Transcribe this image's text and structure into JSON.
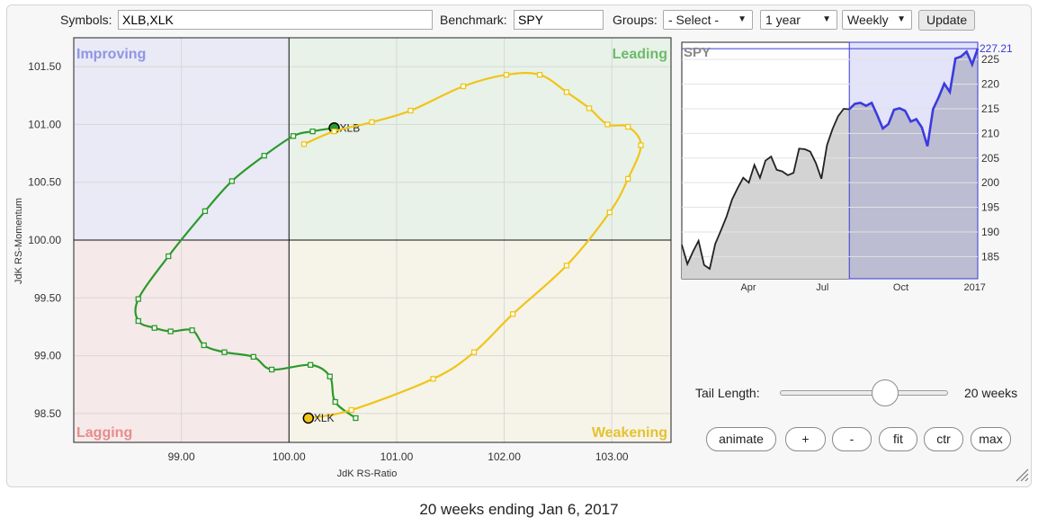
{
  "toolbar": {
    "symbols_label": "Symbols:",
    "symbols_value": "XLB,XLK",
    "benchmark_label": "Benchmark:",
    "benchmark_value": "SPY",
    "groups_label": "Groups:",
    "groups_value": "- Select -",
    "period_value": "1 year",
    "frequency_value": "Weekly",
    "update_label": "Update"
  },
  "rrg": {
    "quadrants": {
      "improving": "Improving",
      "leading": "Leading",
      "lagging": "Lagging",
      "weakening": "Weakening"
    },
    "colors": {
      "improving": "#e9eaf5",
      "leading": "#e8f2e8",
      "lagging": "#f6e9e9",
      "weakening": "#f6f4e8",
      "improving_text": "#8f95e3",
      "leading_text": "#6cbb6c",
      "lagging_text": "#e88c8c",
      "weakening_text": "#e5c230"
    }
  },
  "chart_data": [
    {
      "type": "scatter",
      "title": "",
      "xlabel": "JdK RS-Ratio",
      "ylabel": "JdK RS-Momentum",
      "xlim": [
        98.0,
        103.55
      ],
      "ylim": [
        98.25,
        101.75
      ],
      "xticks": [
        "99.00",
        "100.00",
        "101.00",
        "102.00",
        "103.00"
      ],
      "yticks": [
        "101.50",
        "101.00",
        "100.50",
        "100.00",
        "99.50",
        "99.00",
        "98.50"
      ],
      "center": [
        100.0,
        100.0
      ],
      "series": [
        {
          "name": "XLB",
          "color": "#2a9a2a",
          "points": [
            [
              100.62,
              98.46
            ],
            [
              100.43,
              98.6
            ],
            [
              100.38,
              98.82
            ],
            [
              100.2,
              98.92
            ],
            [
              99.84,
              98.88
            ],
            [
              99.67,
              98.99
            ],
            [
              99.4,
              99.03
            ],
            [
              99.21,
              99.09
            ],
            [
              99.1,
              99.22
            ],
            [
              98.9,
              99.21
            ],
            [
              98.75,
              99.24
            ],
            [
              98.6,
              99.3
            ],
            [
              98.6,
              99.49
            ],
            [
              98.88,
              99.86
            ],
            [
              99.22,
              100.25
            ],
            [
              99.47,
              100.51
            ],
            [
              99.77,
              100.73
            ],
            [
              100.04,
              100.9
            ],
            [
              100.22,
              100.94
            ],
            [
              100.42,
              100.97
            ]
          ]
        },
        {
          "name": "XLK",
          "color": "#f0c419",
          "points": [
            [
              100.14,
              100.83
            ],
            [
              100.42,
              100.94
            ],
            [
              100.77,
              101.02
            ],
            [
              101.13,
              101.12
            ],
            [
              101.62,
              101.33
            ],
            [
              102.02,
              101.43
            ],
            [
              102.33,
              101.43
            ],
            [
              102.58,
              101.28
            ],
            [
              102.79,
              101.14
            ],
            [
              102.96,
              101.0
            ],
            [
              103.15,
              100.98
            ],
            [
              103.27,
              100.82
            ],
            [
              103.15,
              100.53
            ],
            [
              102.98,
              100.24
            ],
            [
              102.58,
              99.78
            ],
            [
              102.08,
              99.36
            ],
            [
              101.72,
              99.03
            ],
            [
              101.34,
              98.8
            ],
            [
              100.58,
              98.53
            ],
            [
              100.18,
              98.46
            ]
          ]
        }
      ]
    },
    {
      "type": "line",
      "title": "SPY",
      "ylim": [
        180.5,
        228.5
      ],
      "yticks": [
        185,
        190,
        195,
        200,
        205,
        210,
        215,
        220,
        225
      ],
      "xticks": [
        "Apr",
        "Jul",
        "Oct",
        "2017"
      ],
      "last_value": "227.21",
      "tail_start_index": 30,
      "values": [
        187.4,
        183.5,
        186.0,
        188.2,
        183.3,
        182.5,
        187.6,
        190.3,
        193.1,
        196.6,
        198.9,
        201.0,
        200.0,
        203.6,
        201.0,
        204.5,
        205.3,
        202.6,
        202.3,
        201.5,
        202.0,
        206.9,
        206.8,
        206.3,
        204.0,
        200.8,
        207.6,
        210.9,
        213.5,
        215.0,
        214.9,
        216.0,
        216.2,
        215.6,
        216.2,
        213.7,
        211.0,
        211.9,
        214.8,
        215.1,
        214.6,
        212.4,
        212.9,
        211.2,
        207.4,
        214.9,
        217.3,
        220.1,
        218.4,
        225.2,
        225.6,
        226.6,
        224.0,
        227.21
      ]
    }
  ],
  "controls": {
    "tail_label": "Tail Length:",
    "tail_value": "20 weeks",
    "tail_fraction": 0.65,
    "buttons": [
      "animate",
      "+",
      "-",
      "fit",
      "ctr",
      "max"
    ]
  },
  "caption": "20 weeks ending Jan 6, 2017"
}
